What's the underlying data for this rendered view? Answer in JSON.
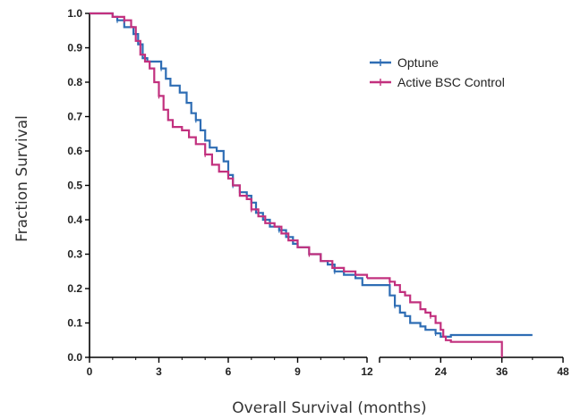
{
  "chart_data": {
    "type": "line",
    "title": "",
    "xlabel": "Overall Survival (months)",
    "ylabel": "Fraction Survival",
    "x_broken_axis": true,
    "x_segments": [
      {
        "range": [
          0,
          12
        ],
        "ticks": [
          "0",
          "3",
          "6",
          "9",
          "12"
        ]
      },
      {
        "range": [
          12,
          48
        ],
        "ticks": [
          "24",
          "36",
          "48"
        ]
      }
    ],
    "ylim": [
      0.0,
      1.0
    ],
    "yticks": [
      "0.0",
      "0.1",
      "0.2",
      "0.3",
      "0.4",
      "0.5",
      "0.6",
      "0.7",
      "0.8",
      "0.9",
      "1.0"
    ],
    "grid": false,
    "legend_position": "top-right",
    "series": [
      {
        "name": "Optune",
        "color": "#2e6db4",
        "points": [
          [
            0,
            1.0
          ],
          [
            0.7,
            1.0
          ],
          [
            1.0,
            0.99
          ],
          [
            1.2,
            0.98
          ],
          [
            1.5,
            0.96
          ],
          [
            1.9,
            0.94
          ],
          [
            2.1,
            0.91
          ],
          [
            2.3,
            0.87
          ],
          [
            2.5,
            0.86
          ],
          [
            2.9,
            0.86
          ],
          [
            3.1,
            0.84
          ],
          [
            3.3,
            0.81
          ],
          [
            3.5,
            0.79
          ],
          [
            3.8,
            0.79
          ],
          [
            3.9,
            0.77
          ],
          [
            4.2,
            0.74
          ],
          [
            4.4,
            0.71
          ],
          [
            4.6,
            0.69
          ],
          [
            4.8,
            0.66
          ],
          [
            5.0,
            0.63
          ],
          [
            5.2,
            0.61
          ],
          [
            5.5,
            0.6
          ],
          [
            5.8,
            0.57
          ],
          [
            6.0,
            0.53
          ],
          [
            6.2,
            0.5
          ],
          [
            6.5,
            0.48
          ],
          [
            6.8,
            0.47
          ],
          [
            7.0,
            0.45
          ],
          [
            7.2,
            0.42
          ],
          [
            7.5,
            0.4
          ],
          [
            7.8,
            0.38
          ],
          [
            8.2,
            0.37
          ],
          [
            8.5,
            0.35
          ],
          [
            8.8,
            0.33
          ],
          [
            9.0,
            0.32
          ],
          [
            9.5,
            0.3
          ],
          [
            10.0,
            0.28
          ],
          [
            10.3,
            0.27
          ],
          [
            10.6,
            0.25
          ],
          [
            11.0,
            0.24
          ],
          [
            11.5,
            0.23
          ],
          [
            11.8,
            0.21
          ],
          [
            12.0,
            0.21
          ],
          [
            13.0,
            0.21
          ],
          [
            14.0,
            0.18
          ],
          [
            15.0,
            0.15
          ],
          [
            16.0,
            0.13
          ],
          [
            17.0,
            0.12
          ],
          [
            18.0,
            0.1
          ],
          [
            20.0,
            0.09
          ],
          [
            21.0,
            0.08
          ],
          [
            22.0,
            0.08
          ],
          [
            23.0,
            0.07
          ],
          [
            24.0,
            0.06
          ],
          [
            25.0,
            0.06
          ],
          [
            26.0,
            0.065
          ],
          [
            42.0,
            0.065
          ]
        ]
      },
      {
        "name": "Active BSC Control",
        "color": "#c2307e",
        "points": [
          [
            0,
            1.0
          ],
          [
            0.5,
            1.0
          ],
          [
            1.0,
            0.99
          ],
          [
            1.5,
            0.98
          ],
          [
            1.8,
            0.96
          ],
          [
            2.0,
            0.92
          ],
          [
            2.2,
            0.88
          ],
          [
            2.4,
            0.86
          ],
          [
            2.6,
            0.84
          ],
          [
            2.8,
            0.8
          ],
          [
            3.0,
            0.76
          ],
          [
            3.2,
            0.72
          ],
          [
            3.4,
            0.69
          ],
          [
            3.6,
            0.67
          ],
          [
            4.0,
            0.66
          ],
          [
            4.3,
            0.64
          ],
          [
            4.6,
            0.62
          ],
          [
            5.0,
            0.59
          ],
          [
            5.3,
            0.56
          ],
          [
            5.6,
            0.54
          ],
          [
            6.0,
            0.52
          ],
          [
            6.2,
            0.5
          ],
          [
            6.5,
            0.47
          ],
          [
            6.8,
            0.46
          ],
          [
            7.0,
            0.43
          ],
          [
            7.3,
            0.41
          ],
          [
            7.6,
            0.39
          ],
          [
            8.0,
            0.38
          ],
          [
            8.3,
            0.36
          ],
          [
            8.6,
            0.34
          ],
          [
            9.0,
            0.32
          ],
          [
            9.5,
            0.3
          ],
          [
            10.0,
            0.28
          ],
          [
            10.5,
            0.26
          ],
          [
            11.0,
            0.25
          ],
          [
            11.5,
            0.24
          ],
          [
            12.0,
            0.23
          ],
          [
            13.0,
            0.23
          ],
          [
            14.0,
            0.22
          ],
          [
            15.0,
            0.21
          ],
          [
            16.0,
            0.19
          ],
          [
            17.0,
            0.18
          ],
          [
            18.0,
            0.16
          ],
          [
            20.0,
            0.14
          ],
          [
            21.0,
            0.13
          ],
          [
            22.0,
            0.12
          ],
          [
            23.0,
            0.1
          ],
          [
            24.0,
            0.08
          ],
          [
            24.5,
            0.06
          ],
          [
            25.0,
            0.05
          ],
          [
            26.0,
            0.045
          ],
          [
            36.0,
            0.045
          ],
          [
            36.0,
            0.0
          ]
        ]
      }
    ]
  }
}
